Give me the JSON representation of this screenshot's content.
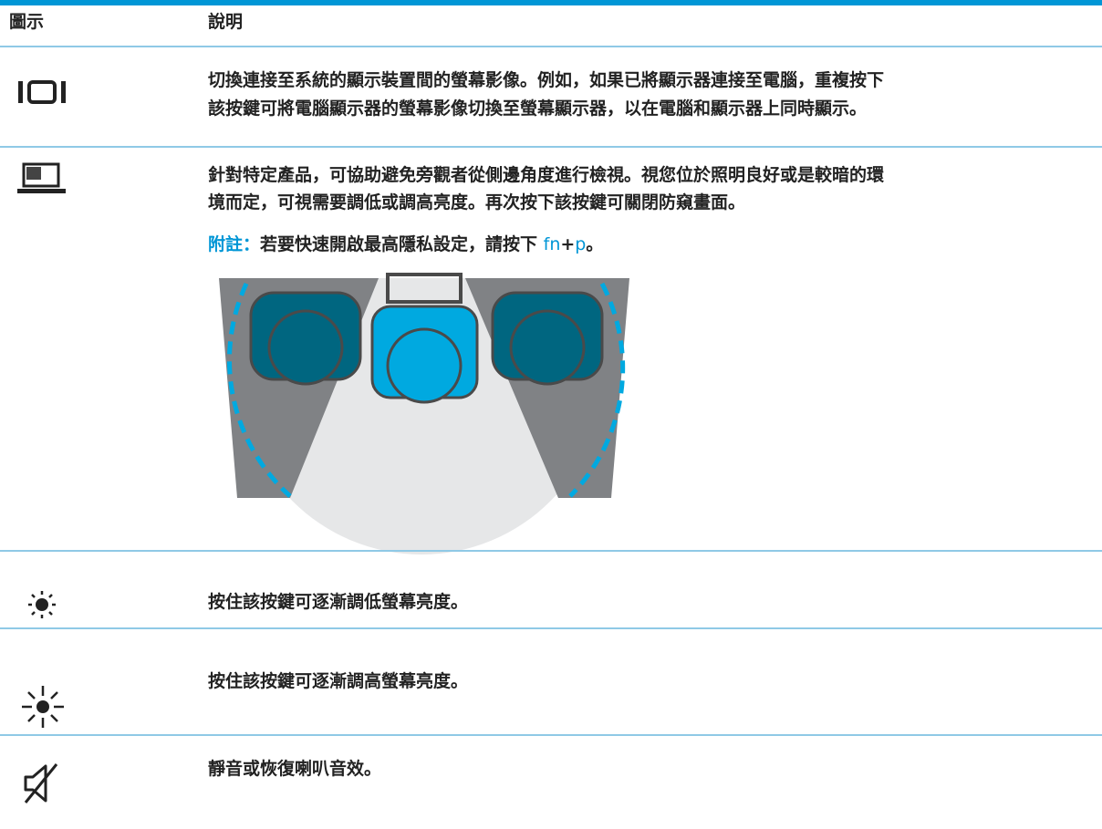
{
  "table": {
    "header": [
      "圖示",
      "說明"
    ],
    "rows": [
      {
        "text": [
          "切換連接至系統的顯示裝置間的螢幕影像。例如，如果已將顯示器連接至電腦，重複按下",
          "該按鍵可將電腦顯示器的螢幕影像切換至螢幕顯示器，以在電腦和顯示器上同時顯示。"
        ]
      },
      {
        "text": [
          "針對特定產品，可協助避免旁觀者從側邊角度進行檢視。視您位於照明良好或是較暗的環",
          "境而定，可視需要調低或調高亮度。再次按下該按鍵可關閉防窺畫面。"
        ],
        "note": [
          "附註：",
          "若要快速開啟最高隱私設定，請按下 ",
          "fn",
          "+",
          "p",
          "。"
        ]
      },
      {
        "text": [
          "按住該按鍵可逐漸調低螢幕亮度。"
        ]
      },
      {
        "text": [
          "按住該按鍵可逐漸調高螢幕亮度。"
        ]
      },
      {
        "text": [
          "靜音或恢復喇叭音效。"
        ]
      }
    ]
  }
}
